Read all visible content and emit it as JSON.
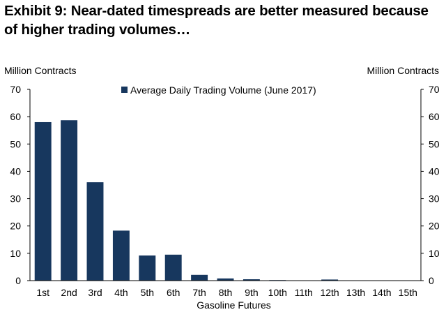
{
  "chart_data": {
    "type": "bar",
    "title": "Exhibit 9: Near-dated timespreads are better measured because of higher trading volumes…",
    "ylabel_left": "Million Contracts",
    "ylabel_right": "Million Contracts",
    "xlabel": "Gasoline Futures",
    "ylim": [
      0,
      70
    ],
    "yticks": [
      0,
      10,
      20,
      30,
      40,
      50,
      60,
      70
    ],
    "grid": false,
    "legend_position": "top-center",
    "categories": [
      "1st",
      "2nd",
      "3rd",
      "4th",
      "5th",
      "6th",
      "7th",
      "8th",
      "9th",
      "10th",
      "11th",
      "12th",
      "13th",
      "14th",
      "15th"
    ],
    "series": [
      {
        "name": "Average Daily Trading Volume (June 2017)",
        "color": "#17375e",
        "values": [
          58.0,
          58.7,
          36.0,
          18.3,
          9.2,
          9.5,
          2.1,
          0.8,
          0.5,
          0.2,
          0.1,
          0.4,
          0.05,
          0.05,
          0.05
        ]
      }
    ]
  }
}
